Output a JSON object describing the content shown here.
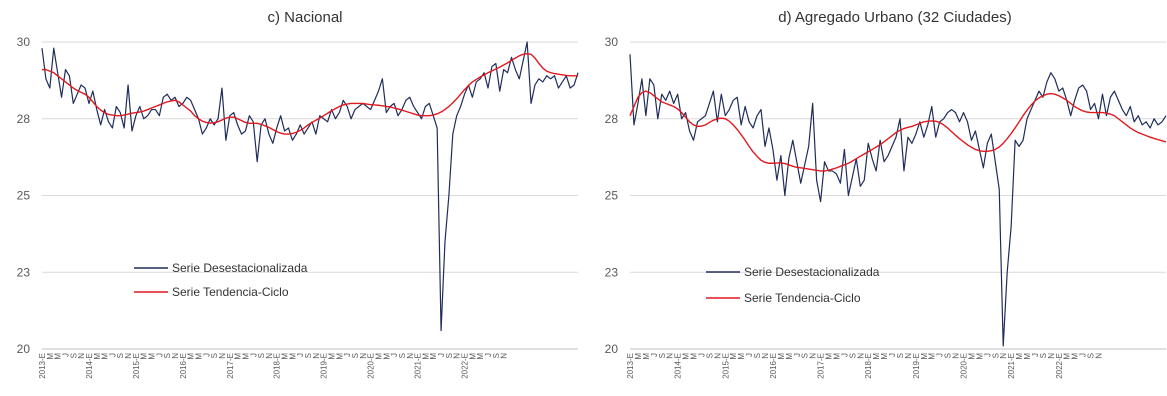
{
  "colors": {
    "raw": "#1f2d5a",
    "trend": "#e0191f",
    "grid": "#d9d9d9",
    "axis": "#bfbfbf"
  },
  "chart_data": [
    {
      "type": "line",
      "title": "c) Nacional",
      "ylim": [
        20,
        30
      ],
      "yticks": [
        "20",
        "23",
        "25",
        "28",
        "30"
      ],
      "grid": true,
      "legend_position": "bottom-left",
      "x_labels": [
        "2013-E",
        "M",
        "M",
        "J",
        "S",
        "N",
        "2014-E",
        "M",
        "M",
        "J",
        "S",
        "N",
        "2015-E",
        "M",
        "M",
        "J",
        "S",
        "N",
        "2016-E",
        "M",
        "M",
        "J",
        "S",
        "N",
        "2017-E",
        "M",
        "M",
        "J",
        "S",
        "N",
        "2018-E",
        "M",
        "M",
        "J",
        "S",
        "N",
        "2019-E",
        "M",
        "M",
        "J",
        "S",
        "N",
        "2020-E",
        "M",
        "M",
        "J",
        "S",
        "N",
        "2021-E",
        "M",
        "M",
        "J",
        "S",
        "N",
        "2022-E",
        "M",
        "M",
        "J",
        "S",
        "N"
      ],
      "series": [
        {
          "name": "Serie Desestacionalizada",
          "values": [
            29.8,
            28.8,
            28.5,
            29.8,
            29.0,
            28.2,
            29.1,
            28.9,
            28.0,
            28.3,
            28.6,
            28.5,
            28.0,
            28.4,
            27.8,
            27.3,
            27.8,
            27.4,
            27.2,
            27.9,
            27.7,
            27.2,
            28.6,
            27.1,
            27.6,
            27.9,
            27.5,
            27.6,
            27.8,
            27.8,
            27.6,
            28.2,
            28.3,
            28.1,
            28.2,
            27.9,
            28.0,
            28.2,
            28.1,
            27.8,
            27.5,
            27.0,
            27.2,
            27.5,
            27.3,
            27.5,
            28.5,
            26.8,
            27.6,
            27.7,
            27.3,
            27.0,
            27.1,
            27.6,
            27.4,
            26.1,
            27.3,
            27.5,
            27.0,
            26.7,
            27.2,
            27.6,
            27.1,
            27.2,
            26.8,
            27.0,
            27.3,
            27.0,
            27.2,
            27.4,
            27.0,
            27.6,
            27.5,
            27.4,
            27.8,
            27.5,
            27.7,
            28.1,
            27.9,
            27.5,
            27.8,
            27.9,
            28.0,
            27.9,
            27.8,
            28.1,
            28.4,
            28.8,
            27.7,
            27.9,
            28.0,
            27.6,
            27.8,
            28.1,
            28.2,
            27.9,
            27.7,
            27.5,
            27.9,
            28.0,
            27.6,
            27.2,
            20.6,
            23.5,
            25.0,
            27.0,
            27.6,
            27.9,
            28.3,
            28.6,
            28.2,
            28.7,
            28.8,
            29.0,
            28.5,
            29.2,
            29.3,
            28.4,
            29.1,
            29.0,
            29.5,
            29.1,
            28.8,
            29.4,
            30.0,
            28.0,
            28.6,
            28.8,
            28.7,
            28.9,
            28.8,
            28.9,
            28.5,
            28.7,
            28.9,
            28.5,
            28.6,
            29.0
          ]
        },
        {
          "name": "Serie Tendencia-Ciclo",
          "values": [
            29.1,
            29.1,
            29.05,
            29.0,
            28.9,
            28.8,
            28.7,
            28.6,
            28.5,
            28.42,
            28.36,
            28.3,
            28.2,
            28.05,
            27.9,
            27.78,
            27.7,
            27.64,
            27.62,
            27.6,
            27.6,
            27.62,
            27.65,
            27.68,
            27.7,
            27.72,
            27.75,
            27.8,
            27.85,
            27.9,
            27.95,
            28.0,
            28.05,
            28.08,
            28.1,
            28.05,
            27.95,
            27.85,
            27.75,
            27.6,
            27.5,
            27.42,
            27.38,
            27.36,
            27.37,
            27.4,
            27.46,
            27.52,
            27.55,
            27.55,
            27.5,
            27.44,
            27.38,
            27.35,
            27.35,
            27.35,
            27.32,
            27.27,
            27.22,
            27.15,
            27.08,
            27.03,
            27.0,
            27.0,
            27.02,
            27.06,
            27.12,
            27.2,
            27.3,
            27.38,
            27.45,
            27.52,
            27.6,
            27.68,
            27.76,
            27.83,
            27.9,
            27.95,
            27.98,
            28.0,
            28.0,
            28.0,
            28.0,
            27.98,
            27.96,
            27.95,
            27.94,
            27.92,
            27.9,
            27.88,
            27.85,
            27.82,
            27.78,
            27.74,
            27.7,
            27.66,
            27.62,
            27.6,
            27.6,
            27.6,
            27.62,
            27.66,
            27.72,
            27.8,
            27.9,
            28.02,
            28.15,
            28.3,
            28.45,
            28.58,
            28.7,
            28.78,
            28.86,
            28.93,
            29.0,
            29.06,
            29.12,
            29.18,
            29.25,
            29.32,
            29.4,
            29.48,
            29.55,
            29.6,
            29.62,
            29.6,
            29.48,
            29.3,
            29.15,
            29.05,
            29.0,
            28.97,
            28.95,
            28.93,
            28.91,
            28.9,
            28.9,
            28.9
          ]
        }
      ]
    },
    {
      "type": "line",
      "title": "d) Agregado Urbano (32 Ciudades)",
      "ylim": [
        20,
        30
      ],
      "yticks": [
        "20",
        "23",
        "25",
        "28",
        "30"
      ],
      "grid": true,
      "legend_position": "bottom-left",
      "x_labels": [
        "2013-E",
        "M",
        "M",
        "J",
        "S",
        "N",
        "2014-E",
        "M",
        "M",
        "J",
        "S",
        "N",
        "2015-E",
        "M",
        "M",
        "J",
        "S",
        "N",
        "2016-E",
        "M",
        "M",
        "J",
        "S",
        "N",
        "2017-E",
        "M",
        "M",
        "J",
        "S",
        "N",
        "2018-E",
        "M",
        "M",
        "J",
        "S",
        "N",
        "2019-E",
        "M",
        "M",
        "J",
        "S",
        "N",
        "2020-E",
        "M",
        "M",
        "J",
        "S",
        "N",
        "2021-E",
        "M",
        "M",
        "J",
        "S",
        "N",
        "2022-E",
        "M",
        "M",
        "J",
        "S",
        "N"
      ],
      "series": [
        {
          "name": "Serie Desestacionalizada",
          "values": [
            29.6,
            27.3,
            28.0,
            28.8,
            27.6,
            28.8,
            28.6,
            27.5,
            28.3,
            28.1,
            28.4,
            28.0,
            28.3,
            27.5,
            27.7,
            27.1,
            26.8,
            27.4,
            27.5,
            27.6,
            28.0,
            28.4,
            27.4,
            28.3,
            27.6,
            27.8,
            28.1,
            28.2,
            27.3,
            27.9,
            27.4,
            27.2,
            27.6,
            27.8,
            26.6,
            27.2,
            26.5,
            25.5,
            26.3,
            25.0,
            26.2,
            26.8,
            26.1,
            25.4,
            26.0,
            26.6,
            28.0,
            25.5,
            24.8,
            26.1,
            25.8,
            25.8,
            25.7,
            25.4,
            26.5,
            25.0,
            25.6,
            26.2,
            25.3,
            25.5,
            26.7,
            26.2,
            25.8,
            26.8,
            26.1,
            26.3,
            26.6,
            26.9,
            27.5,
            25.8,
            26.9,
            26.7,
            27.0,
            27.4,
            26.9,
            27.3,
            27.9,
            26.9,
            27.4,
            27.5,
            27.7,
            27.8,
            27.7,
            27.4,
            27.7,
            27.4,
            26.8,
            27.1,
            26.5,
            25.9,
            26.7,
            27.0,
            26.1,
            25.2,
            20.1,
            22.5,
            24.0,
            26.8,
            26.6,
            26.8,
            27.5,
            27.8,
            28.1,
            28.4,
            28.2,
            28.7,
            29.0,
            28.8,
            28.4,
            28.5,
            28.1,
            27.6,
            28.1,
            28.5,
            28.6,
            28.4,
            27.8,
            28.0,
            27.5,
            28.3,
            27.6,
            28.2,
            28.4,
            28.1,
            27.8,
            27.6,
            27.9,
            27.4,
            27.6,
            27.3,
            27.4,
            27.2,
            27.5,
            27.3,
            27.4,
            27.6
          ]
        },
        {
          "name": "Serie Tendencia-Ciclo",
          "values": [
            27.6,
            27.9,
            28.2,
            28.35,
            28.4,
            28.35,
            28.25,
            28.15,
            28.05,
            28.0,
            27.95,
            27.9,
            27.82,
            27.7,
            27.55,
            27.4,
            27.3,
            27.25,
            27.26,
            27.3,
            27.38,
            27.45,
            27.5,
            27.52,
            27.5,
            27.42,
            27.3,
            27.15,
            26.98,
            26.8,
            26.6,
            26.42,
            26.28,
            26.15,
            26.08,
            26.05,
            26.05,
            26.06,
            26.06,
            26.04,
            26.0,
            25.95,
            25.92,
            25.9,
            25.88,
            25.86,
            25.84,
            25.82,
            25.8,
            25.8,
            25.82,
            25.86,
            25.9,
            25.95,
            26.0,
            26.05,
            26.12,
            26.2,
            26.28,
            26.35,
            26.42,
            26.5,
            26.58,
            26.66,
            26.75,
            26.85,
            26.95,
            27.05,
            27.12,
            27.18,
            27.22,
            27.25,
            27.3,
            27.35,
            27.4,
            27.42,
            27.43,
            27.42,
            27.38,
            27.3,
            27.2,
            27.08,
            26.96,
            26.85,
            26.75,
            26.65,
            26.57,
            26.5,
            26.46,
            26.44,
            26.44,
            26.46,
            26.5,
            26.58,
            26.7,
            26.85,
            27.02,
            27.2,
            27.4,
            27.6,
            27.78,
            27.94,
            28.08,
            28.18,
            28.25,
            28.3,
            28.32,
            28.3,
            28.25,
            28.18,
            28.1,
            28.0,
            27.9,
            27.82,
            27.76,
            27.72,
            27.7,
            27.7,
            27.7,
            27.7,
            27.68,
            27.65,
            27.6,
            27.5,
            27.4,
            27.3,
            27.2,
            27.12,
            27.05,
            27.0,
            26.95,
            26.9,
            26.86,
            26.82,
            26.78,
            26.75
          ]
        }
      ]
    }
  ]
}
